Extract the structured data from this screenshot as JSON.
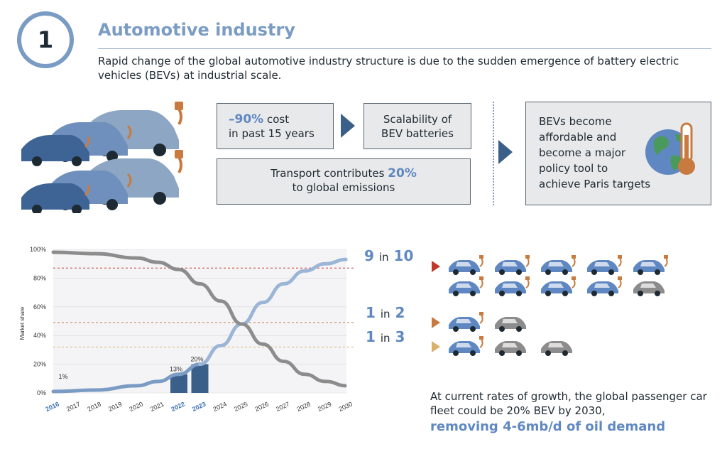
{
  "section": {
    "number": "1",
    "title": "Automotive industry",
    "intro": "Rapid change of the global automotive industry structure is due to the sudden emergence of battery electric vehicles (BEVs) at industrial scale."
  },
  "boxes": {
    "cost": {
      "highlight": "–90%",
      "text1": " cost",
      "text2": "in past 15 years"
    },
    "scalability": {
      "line1": "Scalability of",
      "line2": "BEV batteries"
    },
    "transport": {
      "text1": "Transport contributes ",
      "highlight": "20%",
      "text2": "to global emissions"
    },
    "affordable": {
      "lines": [
        "BEVs become",
        "affordable and",
        "become a major",
        "policy tool to",
        "achieve Paris targets"
      ]
    }
  },
  "chart_data": {
    "type": "line",
    "ylabel": "Market share",
    "yticks": [
      "0%",
      "20%",
      "40%",
      "60%",
      "80%",
      "100%"
    ],
    "ylim": [
      0,
      100
    ],
    "x": [
      2016,
      2017,
      2018,
      2019,
      2020,
      2021,
      2022,
      2023,
      2024,
      2025,
      2026,
      2027,
      2028,
      2029,
      2030
    ],
    "highlighted_years": [
      2016,
      2022,
      2023
    ],
    "series": [
      {
        "style": "bev-solid",
        "x": [
          2016,
          2018,
          2020,
          2021,
          2022,
          2023
        ],
        "values": [
          1,
          2,
          5,
          8,
          13,
          20
        ]
      },
      {
        "style": "bev-dashed",
        "x": [
          2023,
          2024,
          2025,
          2026,
          2027,
          2028,
          2029,
          2030
        ],
        "values": [
          20,
          33,
          48,
          63,
          76,
          85,
          90,
          93
        ]
      },
      {
        "style": "ice-solid",
        "x": [
          2016,
          2018,
          2020,
          2021,
          2022,
          2023
        ],
        "values": [
          98,
          97,
          94,
          91,
          86,
          76
        ]
      },
      {
        "style": "ice-dashed",
        "x": [
          2023,
          2024,
          2025,
          2026,
          2027,
          2028,
          2029,
          2030
        ],
        "values": [
          76,
          64,
          48,
          34,
          22,
          13,
          8,
          5
        ]
      }
    ],
    "bars": [
      {
        "x": 2022,
        "value": 13,
        "label": "13%"
      },
      {
        "x": 2023,
        "value": 20,
        "label": "20%"
      }
    ],
    "point_labels": [
      {
        "x": 2016,
        "value": 1,
        "label": "1%"
      }
    ],
    "reference_lines": [
      {
        "value": 87,
        "color": "#c0392b"
      },
      {
        "value": 49,
        "color": "#c97a3e"
      },
      {
        "value": 32,
        "color": "#d9b16a"
      }
    ]
  },
  "ratios": [
    {
      "big": "9",
      "mid": "in",
      "total": "10",
      "color": "#c0392b"
    },
    {
      "big": "1",
      "mid": "in",
      "total": "2",
      "color": "#c97a3e"
    },
    {
      "big": "1",
      "mid": "in",
      "total": "3",
      "color": "#d9b16a"
    }
  ],
  "fleet_rows": [
    {
      "cars": [
        "bev",
        "bev",
        "bev",
        "bev",
        "bev",
        "bev",
        "bev",
        "bev",
        "bev",
        "ice"
      ]
    },
    {
      "cars": [
        "bev",
        "ice"
      ]
    },
    {
      "cars": [
        "bev",
        "ice",
        "ice"
      ]
    }
  ],
  "footer": {
    "text": "At current rates of growth, the global passenger car fleet could be 20% BEV by 2030,",
    "emphasis": "removing 4-6mb/d of oil demand"
  },
  "colors": {
    "accent": "#5f88c2",
    "dark_arrow": "#3a5f88",
    "ice_grey": "#8c8c8c",
    "bev_blue": "#5f88c2",
    "plug_orange": "#c97a3e"
  }
}
